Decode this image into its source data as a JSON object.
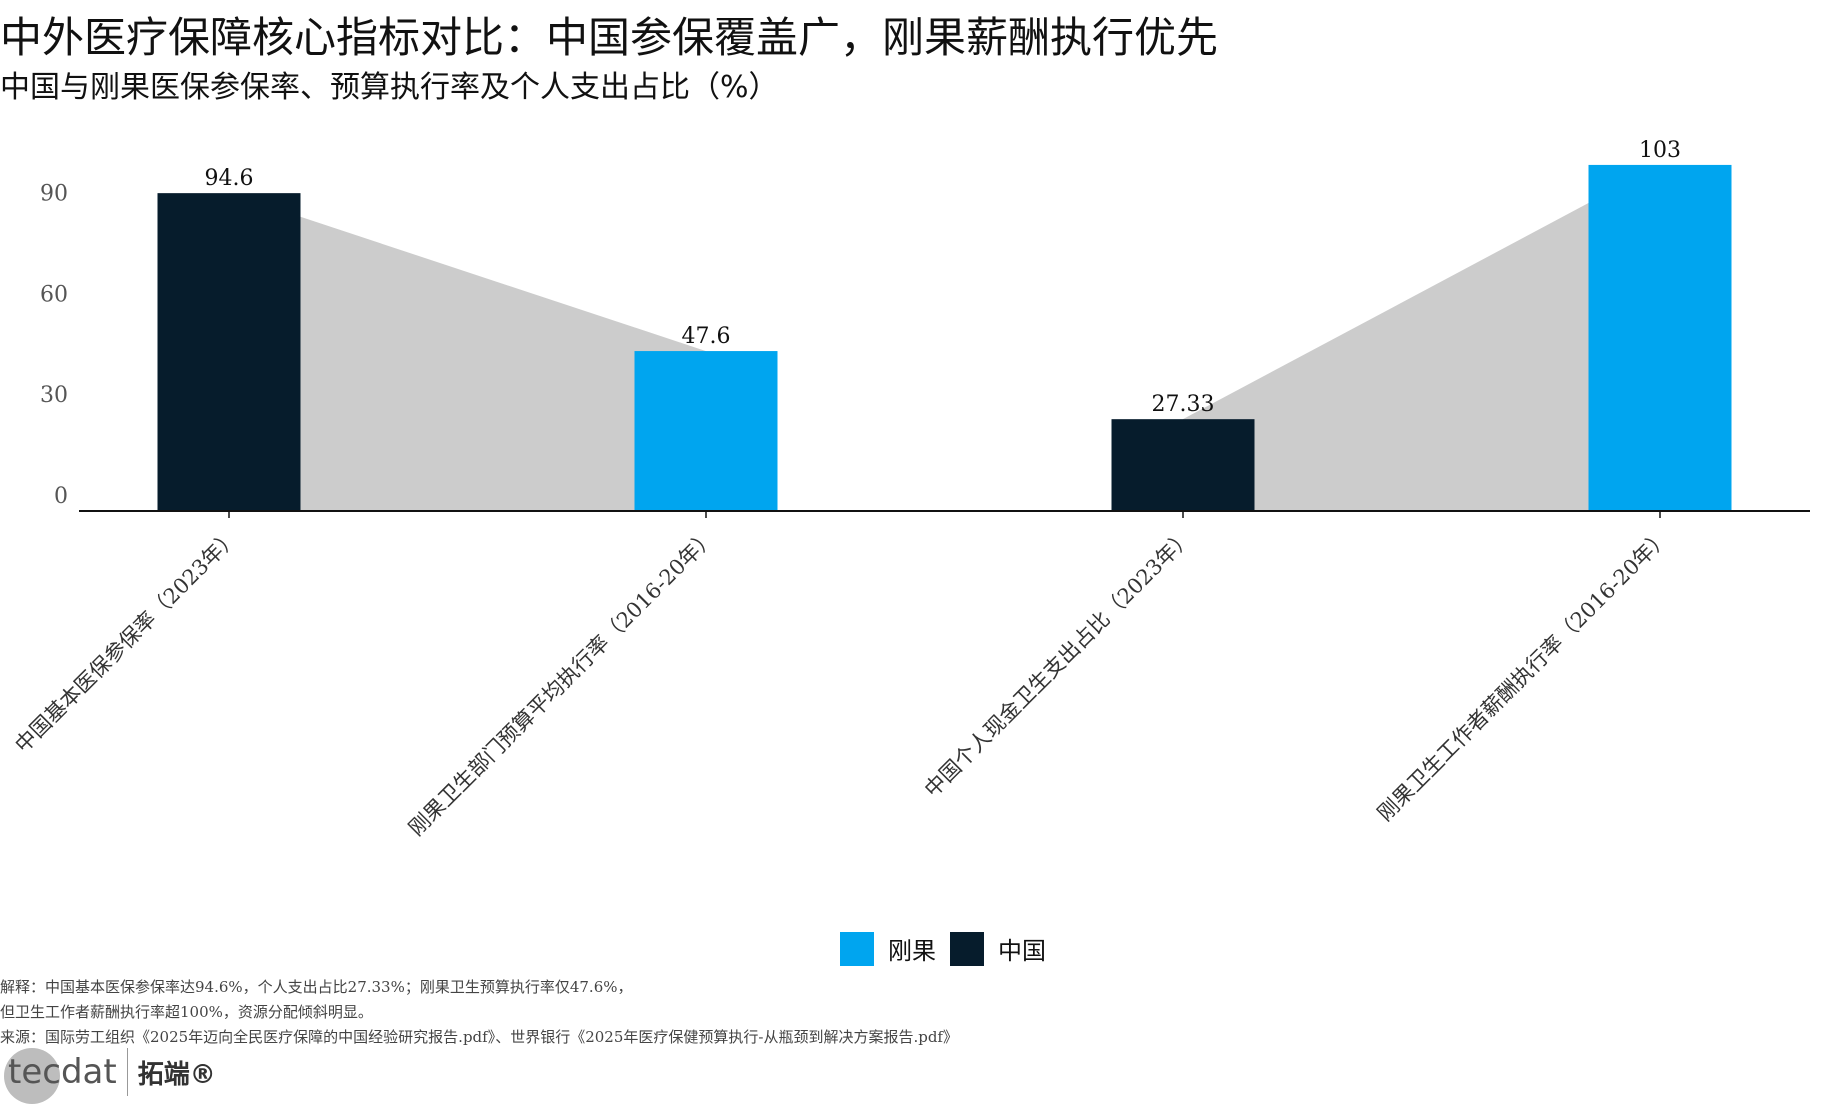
{
  "title": "中外医疗保障核心指标对比：中国参保覆盖广，刚果薪酬执行优先",
  "subtitle": "中国与刚果医保参保率、预算执行率及个人支出占比（%）",
  "colors": {
    "刚果": "#00a5ef",
    "中国": "#061c2c",
    "band": "#cccccc"
  },
  "chart_data": {
    "type": "bar",
    "categories": [
      "中国基本医保参保率（2023年）",
      "刚果卫生部门预算平均执行率（2016-20年）",
      "中国个人现金卫生支出占比（2023年）",
      "刚果卫生工作者薪酬执行率（2016-20年）"
    ],
    "values": [
      94.6,
      47.6,
      27.33,
      103
    ],
    "value_labels": [
      "94.6",
      "47.6",
      "27.33",
      "103"
    ],
    "series_of_bar": [
      "中国",
      "刚果",
      "中国",
      "刚果"
    ],
    "yticks": [
      "0",
      "30",
      "60",
      "90"
    ],
    "ytick_values": [
      0,
      30,
      60,
      90
    ],
    "ylim": [
      0,
      110
    ],
    "grid": false,
    "connectors": [
      [
        0,
        1
      ],
      [
        2,
        3
      ]
    ],
    "legend": {
      "placement": "bottom",
      "entries": [
        "刚果",
        "中国"
      ]
    }
  },
  "footer": {
    "note1": "解释：中国基本医保参保率达94.6%，个人支出占比27.33%；刚果卫生预算执行率仅47.6%，",
    "note2": "但卫生工作者薪酬执行率超100%，资源分配倾斜明显。",
    "source": "来源：国际劳工组织《2025年迈向全民医疗保障的中国经验研究报告.pdf》、世界银行《2025年医疗保健预算执行-从瓶颈到解决方案报告.pdf》"
  },
  "logo": {
    "text": "tecdat",
    "cn": "拓端®"
  }
}
